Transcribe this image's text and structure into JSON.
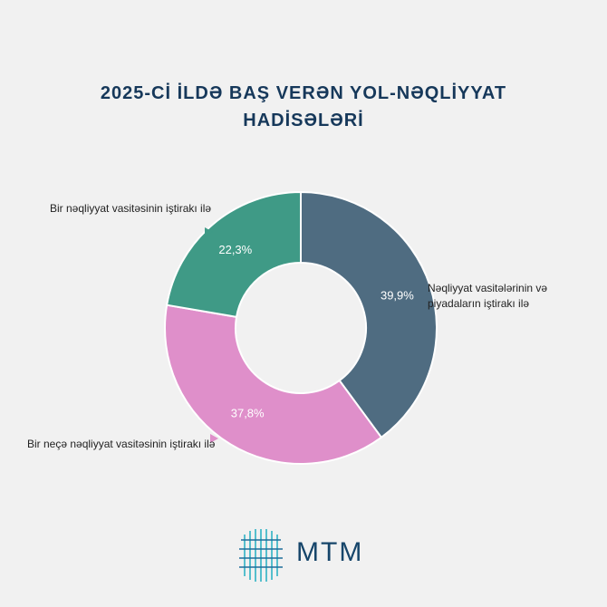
{
  "chart_data": {
    "type": "pie",
    "title": "2025-Cİ İLDƏ BAŞ VERƏN YOL-NƏQLİYYAT HADİSƏLƏRİ",
    "categories": [
      "Nəqliyyat vasitələrinin və piyadaların iştirakı ilə",
      "Bir neçə nəqliyyat vasitəsinin iştirakı ilə",
      "Bir nəqliyyat vasitəsinin iştirakı ilə"
    ],
    "values": [
      39.9,
      37.8,
      22.3
    ],
    "value_labels": [
      "39,9%",
      "37,8%",
      "22,3%"
    ],
    "colors": [
      "#4f6c81",
      "#df8fca",
      "#3f9a86"
    ],
    "donut": true
  },
  "logo": {
    "text": "MTM"
  }
}
